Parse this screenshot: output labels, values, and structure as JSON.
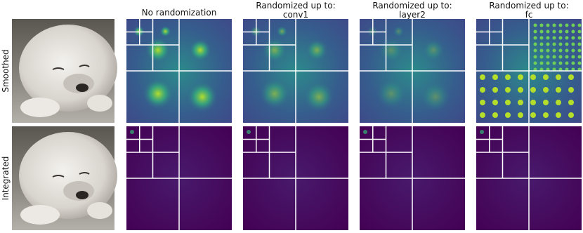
{
  "columns": [
    {
      "title": "No randomization"
    },
    {
      "title": "Randomized up to:",
      "subtitle": "conv1"
    },
    {
      "title": "Randomized up to:",
      "subtitle": "layer2"
    },
    {
      "title": "Randomized up to:",
      "subtitle": "fc"
    }
  ],
  "rows": [
    "Smoothed",
    "Integrated"
  ]
}
